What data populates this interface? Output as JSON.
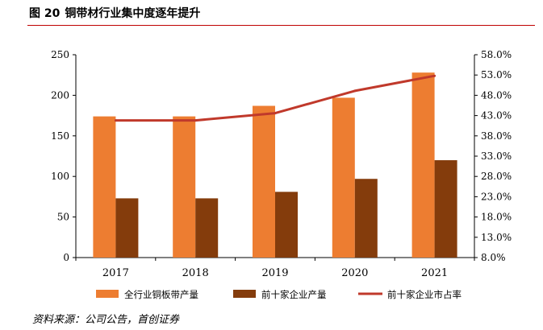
{
  "title": {
    "figure_no": "图 20",
    "text": "铜带材行业集中度逐年提升"
  },
  "source": "资料来源：公司公告，首创证券",
  "colors": {
    "total": "#ED7D31",
    "top10": "#843C0C",
    "share": "#C0392B",
    "rule": "#C00000"
  },
  "chart_data": {
    "type": "bar",
    "categories": [
      "2017",
      "2018",
      "2019",
      "2020",
      "2021"
    ],
    "series": [
      {
        "name": "全行业铜板带产量",
        "kind": "bar",
        "axis": "left",
        "values": [
          174,
          174,
          187,
          197,
          228
        ]
      },
      {
        "name": "前十家企业产量",
        "kind": "bar",
        "axis": "left",
        "values": [
          73,
          73,
          81,
          97,
          120
        ]
      },
      {
        "name": "前十家企业市占率",
        "kind": "line",
        "axis": "right",
        "values": [
          41.8,
          41.8,
          43.6,
          49.1,
          52.8
        ]
      }
    ],
    "left_axis": {
      "min": 0,
      "max": 250,
      "ticks": [
        "0",
        "50",
        "100",
        "150",
        "200",
        "250"
      ]
    },
    "right_axis": {
      "min": 8.0,
      "max": 58.0,
      "ticks": [
        "8.0%",
        "13.0%",
        "18.0%",
        "23.0%",
        "28.0%",
        "33.0%",
        "38.0%",
        "43.0%",
        "48.0%",
        "53.0%",
        "58.0%"
      ]
    },
    "legend_position": "bottom"
  }
}
